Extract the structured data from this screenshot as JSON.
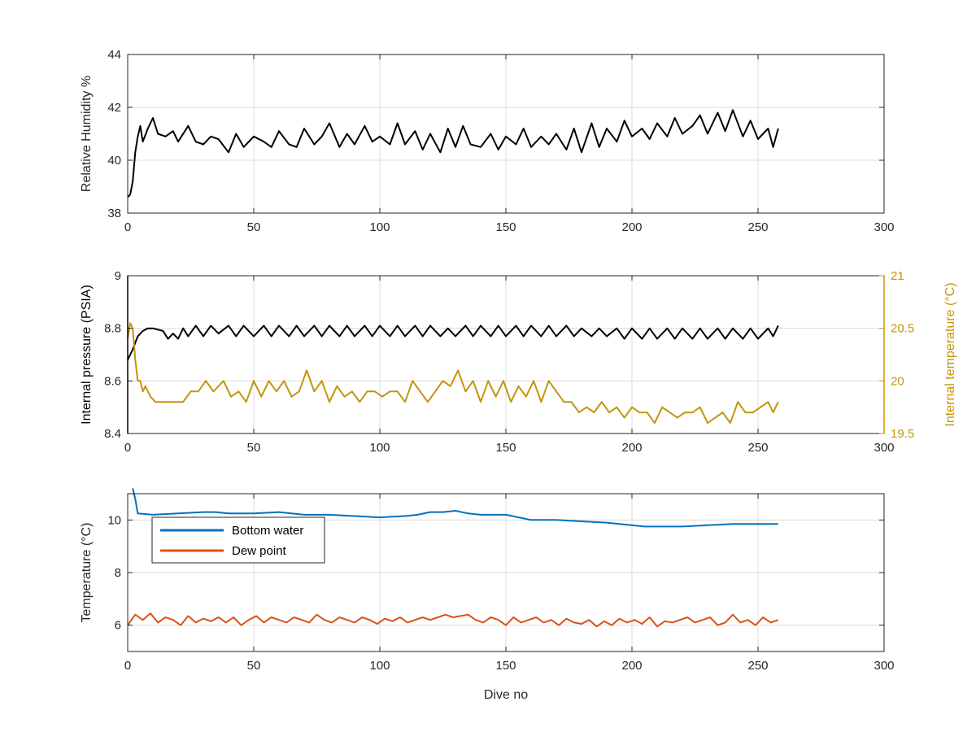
{
  "chart_data": [
    {
      "type": "line",
      "title": "",
      "xlabel": "",
      "ylabel": "Relative Humidity %",
      "xlim": [
        0,
        300
      ],
      "ylim": [
        38,
        44
      ],
      "xticks": [
        0,
        50,
        100,
        150,
        200,
        250,
        300
      ],
      "yticks": [
        38,
        40,
        42,
        44
      ],
      "grid": true,
      "series": [
        {
          "color": "#000000",
          "x": [
            0,
            1,
            2,
            3,
            4,
            5,
            6,
            8,
            10,
            12,
            15,
            18,
            20,
            24,
            27,
            30,
            33,
            36,
            40,
            43,
            46,
            50,
            54,
            57,
            60,
            64,
            67,
            70,
            74,
            77,
            80,
            84,
            87,
            90,
            94,
            97,
            100,
            104,
            107,
            110,
            114,
            117,
            120,
            124,
            127,
            130,
            133,
            136,
            140,
            144,
            147,
            150,
            154,
            157,
            160,
            164,
            167,
            170,
            174,
            177,
            180,
            184,
            187,
            190,
            194,
            197,
            200,
            204,
            207,
            210,
            214,
            217,
            220,
            224,
            227,
            230,
            234,
            237,
            240,
            244,
            247,
            250,
            254,
            256,
            258
          ],
          "values": [
            38.6,
            38.7,
            39.2,
            40.3,
            40.9,
            41.3,
            40.7,
            41.2,
            41.6,
            41.0,
            40.9,
            41.1,
            40.7,
            41.3,
            40.7,
            40.6,
            40.9,
            40.8,
            40.3,
            41.0,
            40.5,
            40.9,
            40.7,
            40.5,
            41.1,
            40.6,
            40.5,
            41.2,
            40.6,
            40.9,
            41.4,
            40.5,
            41.0,
            40.6,
            41.3,
            40.7,
            40.9,
            40.6,
            41.4,
            40.6,
            41.1,
            40.4,
            41.0,
            40.3,
            41.2,
            40.5,
            41.3,
            40.6,
            40.5,
            41.0,
            40.4,
            40.9,
            40.6,
            41.2,
            40.5,
            40.9,
            40.6,
            41.0,
            40.4,
            41.2,
            40.3,
            41.4,
            40.5,
            41.2,
            40.7,
            41.5,
            40.9,
            41.2,
            40.8,
            41.4,
            40.9,
            41.6,
            41.0,
            41.3,
            41.7,
            41.0,
            41.8,
            41.1,
            41.9,
            40.9,
            41.5,
            40.8,
            41.2,
            40.5,
            41.2
          ]
        }
      ]
    },
    {
      "type": "line",
      "title": "",
      "xlabel": "",
      "ylabel": "Internal pressure (PSIA)",
      "y2label": "Internal temperature (°C)",
      "xlim": [
        0,
        300
      ],
      "ylim": [
        8.4,
        9.0
      ],
      "y2lim": [
        19.5,
        21.0
      ],
      "xticks": [
        0,
        50,
        100,
        150,
        200,
        250,
        300
      ],
      "yticks": [
        8.4,
        8.6,
        8.8,
        9.0
      ],
      "y2ticks": [
        19.5,
        20.0,
        20.5,
        21.0
      ],
      "ytick_labels": [
        "8.4",
        "8.6",
        "8.8",
        "9"
      ],
      "y2tick_labels": [
        "19.5",
        "20",
        "20.5",
        "21"
      ],
      "right_axis_color": "#c39508",
      "grid": true,
      "series": [
        {
          "axis": "left",
          "color": "#000000",
          "x": [
            0,
            1,
            2,
            4,
            6,
            8,
            10,
            14,
            16,
            18,
            20,
            22,
            24,
            27,
            30,
            33,
            36,
            40,
            43,
            46,
            50,
            54,
            57,
            60,
            64,
            67,
            70,
            74,
            77,
            80,
            84,
            87,
            90,
            94,
            97,
            100,
            104,
            107,
            110,
            114,
            117,
            120,
            124,
            127,
            130,
            134,
            137,
            140,
            144,
            147,
            150,
            154,
            157,
            160,
            164,
            167,
            170,
            174,
            177,
            180,
            184,
            187,
            190,
            194,
            197,
            200,
            204,
            207,
            210,
            214,
            217,
            220,
            224,
            227,
            230,
            234,
            237,
            240,
            244,
            247,
            250,
            254,
            256,
            258
          ],
          "values": [
            8.68,
            8.7,
            8.72,
            8.77,
            8.79,
            8.8,
            8.8,
            8.79,
            8.76,
            8.78,
            8.76,
            8.8,
            8.77,
            8.81,
            8.77,
            8.81,
            8.78,
            8.81,
            8.77,
            8.81,
            8.77,
            8.81,
            8.77,
            8.81,
            8.77,
            8.81,
            8.77,
            8.81,
            8.77,
            8.81,
            8.77,
            8.81,
            8.77,
            8.81,
            8.77,
            8.81,
            8.77,
            8.81,
            8.77,
            8.81,
            8.77,
            8.81,
            8.77,
            8.8,
            8.77,
            8.81,
            8.77,
            8.81,
            8.77,
            8.81,
            8.77,
            8.81,
            8.77,
            8.81,
            8.77,
            8.81,
            8.77,
            8.81,
            8.77,
            8.8,
            8.77,
            8.8,
            8.77,
            8.8,
            8.76,
            8.8,
            8.76,
            8.8,
            8.76,
            8.8,
            8.76,
            8.8,
            8.76,
            8.8,
            8.76,
            8.8,
            8.76,
            8.8,
            8.76,
            8.8,
            8.76,
            8.8,
            8.77,
            8.81
          ]
        },
        {
          "axis": "right",
          "color": "#c39508",
          "x": [
            0,
            1,
            2,
            3,
            4,
            5,
            6,
            7,
            9,
            11,
            13,
            15,
            18,
            22,
            25,
            28,
            31,
            34,
            38,
            41,
            44,
            47,
            50,
            53,
            56,
            59,
            62,
            65,
            68,
            71,
            74,
            77,
            80,
            83,
            86,
            89,
            92,
            95,
            98,
            101,
            104,
            107,
            110,
            113,
            116,
            119,
            122,
            125,
            128,
            131,
            134,
            137,
            140,
            143,
            146,
            149,
            152,
            155,
            158,
            161,
            164,
            167,
            170,
            173,
            176,
            179,
            182,
            185,
            188,
            191,
            194,
            197,
            200,
            203,
            206,
            209,
            212,
            215,
            218,
            221,
            224,
            227,
            230,
            233,
            236,
            239,
            242,
            245,
            248,
            251,
            254,
            256,
            258
          ],
          "values": [
            20.4,
            20.55,
            20.5,
            20.2,
            20.0,
            20.0,
            19.9,
            19.95,
            19.85,
            19.8,
            19.8,
            19.8,
            19.8,
            19.8,
            19.9,
            19.9,
            20.0,
            19.9,
            20.0,
            19.85,
            19.9,
            19.8,
            20.0,
            19.85,
            20.0,
            19.9,
            20.0,
            19.85,
            19.9,
            20.1,
            19.9,
            20.0,
            19.8,
            19.95,
            19.85,
            19.9,
            19.8,
            19.9,
            19.9,
            19.85,
            19.9,
            19.9,
            19.8,
            20.0,
            19.9,
            19.8,
            19.9,
            20.0,
            19.95,
            20.1,
            19.9,
            20.0,
            19.8,
            20.0,
            19.85,
            20.0,
            19.8,
            19.95,
            19.85,
            20.0,
            19.8,
            20.0,
            19.9,
            19.8,
            19.8,
            19.7,
            19.75,
            19.7,
            19.8,
            19.7,
            19.75,
            19.65,
            19.75,
            19.7,
            19.7,
            19.6,
            19.75,
            19.7,
            19.65,
            19.7,
            19.7,
            19.75,
            19.6,
            19.65,
            19.7,
            19.6,
            19.8,
            19.7,
            19.7,
            19.75,
            19.8,
            19.7,
            19.8
          ]
        }
      ]
    },
    {
      "type": "line",
      "title": "",
      "xlabel": "Dive no",
      "ylabel": "Temperature (°C)",
      "xlim": [
        0,
        300
      ],
      "ylim": [
        5,
        11
      ],
      "xticks": [
        0,
        50,
        100,
        150,
        200,
        250,
        300
      ],
      "yticks": [
        6,
        8,
        10
      ],
      "grid": true,
      "legend": "top-left",
      "series": [
        {
          "name": "Bottom water",
          "color": "#0072bd",
          "x": [
            2,
            3,
            4,
            10,
            20,
            30,
            35,
            40,
            50,
            60,
            70,
            80,
            90,
            100,
            110,
            115,
            120,
            125,
            130,
            135,
            140,
            150,
            160,
            170,
            180,
            190,
            200,
            205,
            210,
            220,
            230,
            240,
            250,
            258
          ],
          "values": [
            11.2,
            10.8,
            10.25,
            10.2,
            10.25,
            10.3,
            10.3,
            10.25,
            10.25,
            10.3,
            10.2,
            10.2,
            10.15,
            10.1,
            10.15,
            10.2,
            10.3,
            10.3,
            10.35,
            10.25,
            10.2,
            10.2,
            10.0,
            10.0,
            9.95,
            9.9,
            9.8,
            9.75,
            9.75,
            9.75,
            9.8,
            9.85,
            9.85,
            9.85
          ]
        },
        {
          "name": "Dew point",
          "color": "#d95319",
          "x": [
            0,
            3,
            6,
            9,
            12,
            15,
            18,
            21,
            24,
            27,
            30,
            33,
            36,
            39,
            42,
            45,
            48,
            51,
            54,
            57,
            60,
            63,
            66,
            69,
            72,
            75,
            78,
            81,
            84,
            87,
            90,
            93,
            96,
            99,
            102,
            105,
            108,
            111,
            114,
            117,
            120,
            123,
            126,
            129,
            132,
            135,
            138,
            141,
            144,
            147,
            150,
            153,
            156,
            159,
            162,
            165,
            168,
            171,
            174,
            177,
            180,
            183,
            186,
            189,
            192,
            195,
            198,
            201,
            204,
            207,
            210,
            213,
            216,
            219,
            222,
            225,
            228,
            231,
            234,
            237,
            240,
            243,
            246,
            249,
            252,
            255,
            258
          ],
          "values": [
            6.0,
            6.4,
            6.2,
            6.45,
            6.1,
            6.3,
            6.2,
            6.0,
            6.35,
            6.1,
            6.25,
            6.15,
            6.3,
            6.1,
            6.3,
            6.0,
            6.2,
            6.35,
            6.1,
            6.3,
            6.2,
            6.1,
            6.3,
            6.2,
            6.1,
            6.4,
            6.2,
            6.1,
            6.3,
            6.2,
            6.1,
            6.3,
            6.2,
            6.05,
            6.25,
            6.15,
            6.3,
            6.1,
            6.2,
            6.3,
            6.2,
            6.3,
            6.4,
            6.3,
            6.35,
            6.4,
            6.2,
            6.1,
            6.3,
            6.2,
            6.0,
            6.3,
            6.1,
            6.2,
            6.3,
            6.1,
            6.2,
            6.0,
            6.25,
            6.1,
            6.05,
            6.2,
            5.95,
            6.15,
            6.0,
            6.25,
            6.1,
            6.2,
            6.05,
            6.3,
            5.95,
            6.15,
            6.1,
            6.2,
            6.3,
            6.1,
            6.2,
            6.3,
            6.0,
            6.1,
            6.4,
            6.1,
            6.2,
            6.0,
            6.3,
            6.1,
            6.2
          ]
        }
      ]
    }
  ]
}
